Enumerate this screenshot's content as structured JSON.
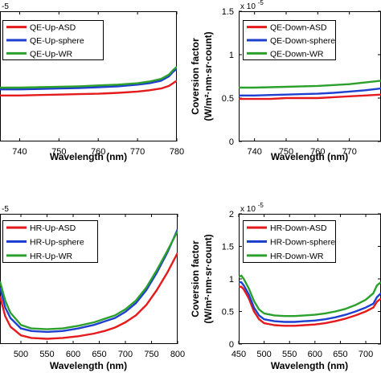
{
  "chart_data": [
    {
      "type": "line",
      "panel": "top-left",
      "xlabel": "Wavelength (nm)",
      "ylabel": "",
      "exponent_label": "-5",
      "xlim": [
        735,
        780
      ],
      "ylim": [
        0,
        1.5
      ],
      "xticks": [
        740,
        750,
        760,
        770,
        780
      ],
      "yticks": [],
      "legend_placement": "top-left",
      "series": [
        {
          "name": "QE-Up-ASD",
          "color": "#e41a1c",
          "x": [
            735,
            740,
            745,
            750,
            755,
            760,
            765,
            770,
            773,
            776,
            778,
            779,
            780
          ],
          "y": [
            0.53,
            0.53,
            0.535,
            0.54,
            0.545,
            0.55,
            0.56,
            0.575,
            0.59,
            0.61,
            0.64,
            0.67,
            0.7
          ]
        },
        {
          "name": "QE-Up-sphere",
          "color": "#1f3fd1",
          "x": [
            735,
            740,
            745,
            750,
            755,
            760,
            765,
            770,
            773,
            776,
            778,
            779,
            780
          ],
          "y": [
            0.6,
            0.6,
            0.605,
            0.61,
            0.615,
            0.625,
            0.635,
            0.655,
            0.67,
            0.7,
            0.75,
            0.8,
            0.84
          ]
        },
        {
          "name": "QE-Up-WR",
          "color": "#2ca02c",
          "x": [
            735,
            740,
            745,
            750,
            755,
            760,
            765,
            770,
            773,
            776,
            778,
            779,
            780
          ],
          "y": [
            0.62,
            0.62,
            0.625,
            0.63,
            0.635,
            0.645,
            0.655,
            0.67,
            0.69,
            0.72,
            0.77,
            0.82,
            0.86
          ]
        }
      ]
    },
    {
      "type": "line",
      "panel": "top-right",
      "xlabel": "Wavelength (nm)",
      "ylabel": "Coversion factor\n(W/m²·nm·sr·count)",
      "exponent_label": "x 10",
      "exponent_power": "-5",
      "xlim": [
        735,
        780
      ],
      "ylim": [
        0,
        1.5
      ],
      "xticks": [
        740,
        750,
        760,
        770
      ],
      "yticks": [
        0,
        0.5,
        1,
        1.5
      ],
      "legend_placement": "top-left",
      "series": [
        {
          "name": "QE-Down-ASD",
          "color": "#e41a1c",
          "x": [
            735,
            740,
            745,
            750,
            755,
            760,
            765,
            770,
            775,
            780
          ],
          "y": [
            0.49,
            0.49,
            0.49,
            0.5,
            0.5,
            0.5,
            0.51,
            0.52,
            0.53,
            0.54
          ]
        },
        {
          "name": "QE-Down-sphere",
          "color": "#1f3fd1",
          "x": [
            735,
            740,
            745,
            750,
            755,
            760,
            765,
            770,
            775,
            780
          ],
          "y": [
            0.53,
            0.53,
            0.535,
            0.54,
            0.545,
            0.55,
            0.56,
            0.575,
            0.59,
            0.61
          ]
        },
        {
          "name": "QE-Down-WR",
          "color": "#2ca02c",
          "x": [
            735,
            740,
            745,
            750,
            755,
            760,
            765,
            770,
            775,
            780
          ],
          "y": [
            0.62,
            0.62,
            0.625,
            0.63,
            0.635,
            0.64,
            0.65,
            0.66,
            0.68,
            0.7
          ]
        }
      ]
    },
    {
      "type": "line",
      "panel": "bottom-left",
      "xlabel": "Wavelength (nm)",
      "ylabel": "",
      "exponent_label": "-5",
      "xlim": [
        460,
        800
      ],
      "ylim": [
        0,
        1.5
      ],
      "xticks": [
        500,
        550,
        600,
        650,
        700,
        750,
        800
      ],
      "yticks": [],
      "legend_placement": "top-left",
      "series": [
        {
          "name": "HR-Up-ASD",
          "color": "#e41a1c",
          "x": [
            460,
            470,
            480,
            500,
            520,
            550,
            580,
            610,
            640,
            660,
            680,
            700,
            720,
            740,
            760,
            780,
            800
          ],
          "y": [
            0.55,
            0.32,
            0.2,
            0.1,
            0.07,
            0.06,
            0.07,
            0.09,
            0.12,
            0.15,
            0.19,
            0.25,
            0.33,
            0.45,
            0.62,
            0.82,
            1.05
          ]
        },
        {
          "name": "HR-Up-sphere",
          "color": "#1f3fd1",
          "x": [
            460,
            470,
            480,
            500,
            520,
            550,
            580,
            610,
            640,
            660,
            680,
            700,
            720,
            740,
            760,
            780,
            800
          ],
          "y": [
            0.65,
            0.42,
            0.3,
            0.18,
            0.15,
            0.14,
            0.15,
            0.18,
            0.22,
            0.26,
            0.3,
            0.37,
            0.47,
            0.62,
            0.82,
            1.05,
            1.32
          ]
        },
        {
          "name": "HR-Up-WR",
          "color": "#2ca02c",
          "x": [
            460,
            470,
            480,
            500,
            520,
            550,
            580,
            610,
            640,
            660,
            680,
            700,
            720,
            740,
            760,
            780,
            800
          ],
          "y": [
            0.72,
            0.5,
            0.36,
            0.22,
            0.18,
            0.17,
            0.18,
            0.21,
            0.25,
            0.29,
            0.33,
            0.4,
            0.5,
            0.65,
            0.85,
            1.07,
            1.3
          ]
        }
      ]
    },
    {
      "type": "line",
      "panel": "bottom-right",
      "xlabel": "Wavelength (nm)",
      "ylabel": "Coversion factor\n(W/m²·nm·sr·count)",
      "exponent_label": "x 10",
      "exponent_power": "-5",
      "xlim": [
        450,
        730
      ],
      "ylim": [
        0,
        2
      ],
      "xticks": [
        450,
        500,
        550,
        600,
        650,
        700
      ],
      "yticks": [
        0,
        0.5,
        1,
        1.5,
        2
      ],
      "legend_placement": "top-left",
      "series": [
        {
          "name": "HR-Down-ASD",
          "color": "#e41a1c",
          "x": [
            450,
            455,
            460,
            470,
            480,
            490,
            500,
            520,
            540,
            560,
            580,
            600,
            620,
            640,
            660,
            680,
            700,
            715,
            722,
            730
          ],
          "y": [
            0.88,
            0.88,
            0.84,
            0.7,
            0.5,
            0.38,
            0.32,
            0.29,
            0.28,
            0.28,
            0.29,
            0.3,
            0.32,
            0.35,
            0.39,
            0.44,
            0.5,
            0.56,
            0.65,
            0.7
          ]
        },
        {
          "name": "HR-Down-sphere",
          "color": "#1f3fd1",
          "x": [
            450,
            455,
            460,
            470,
            480,
            490,
            500,
            520,
            540,
            560,
            580,
            600,
            620,
            640,
            660,
            680,
            700,
            715,
            722,
            730
          ],
          "y": [
            0.95,
            0.95,
            0.9,
            0.76,
            0.56,
            0.44,
            0.38,
            0.35,
            0.34,
            0.34,
            0.35,
            0.36,
            0.38,
            0.41,
            0.45,
            0.5,
            0.56,
            0.62,
            0.72,
            0.78
          ]
        },
        {
          "name": "HR-Down-WR",
          "color": "#2ca02c",
          "x": [
            450,
            455,
            460,
            470,
            480,
            490,
            500,
            520,
            540,
            560,
            580,
            600,
            620,
            640,
            660,
            680,
            700,
            715,
            722,
            730
          ],
          "y": [
            1.03,
            1.05,
            1.0,
            0.85,
            0.66,
            0.53,
            0.47,
            0.44,
            0.43,
            0.43,
            0.44,
            0.45,
            0.47,
            0.5,
            0.54,
            0.6,
            0.68,
            0.78,
            0.9,
            0.95
          ]
        }
      ]
    }
  ]
}
